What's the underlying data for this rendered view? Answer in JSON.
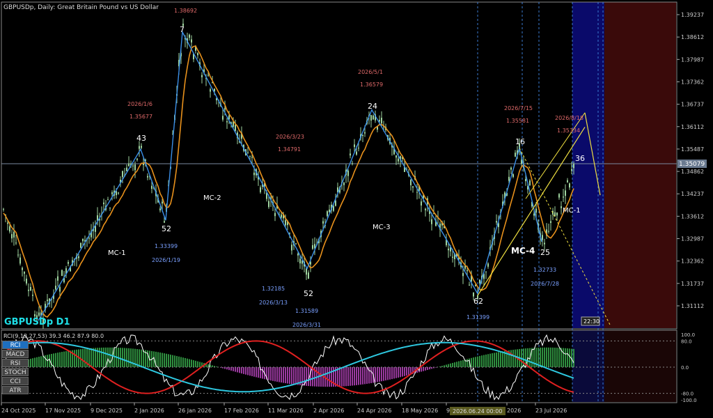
{
  "header": {
    "title": "GBPUSDp, Daily:  Great Britain Pound vs US Dollar"
  },
  "symbol_label": "GBPUSDp D1",
  "indicator_header": "RCI(9,13,27,53) 39.3 46.2 87.9 80.0",
  "indicator_buttons": [
    "RCI",
    "MACD",
    "RSI",
    "STOCH",
    "CCI",
    "ATR"
  ],
  "active_button": "RCI",
  "time_box": "22:30",
  "crosshair_date": "2026.06.24 00:00",
  "colors": {
    "up": "#9fd49f",
    "line": "#e8911c",
    "zigzag": "#3a8ee6",
    "rci1": "#ffffff",
    "rci2": "#e02020",
    "rci3": "#2ec8e0",
    "hist_pos": "#2f8f3f",
    "hist_neg": "#9b3aa0",
    "proj": "#f0e040",
    "zone_blue": "#0a0a6a",
    "zone_red": "#3a0a0a"
  },
  "chart_data": {
    "type": "candlestick",
    "y_ticks": [
      "1.39237",
      "1.38612",
      "1.37987",
      "1.37362",
      "1.36737",
      "1.36112",
      "1.35487",
      "1.34862",
      "1.34237",
      "1.33612",
      "1.32987",
      "1.32362",
      "1.31737",
      "1.31112"
    ],
    "current_price": "1.35079",
    "x_ticks": [
      "24 Oct 2025",
      "17 Nov 2025",
      "9 Dec 2025",
      "2 Jan 2026",
      "26 Jan 2026",
      "17 Feb 2026",
      "11 Mar 2026",
      "2 Apr 2026",
      "24 Apr 2026",
      "18 May 2026",
      "9",
      "2026",
      "23 Jul 2026"
    ],
    "swing_counts": [
      {
        "label": "43"
      },
      {
        "label": "52"
      },
      {
        "label": "7"
      },
      {
        "label": "52"
      },
      {
        "label": "24"
      },
      {
        "label": "62"
      },
      {
        "label": "16"
      },
      {
        "label": "25"
      },
      {
        "label": "36"
      }
    ],
    "price_annotations": [
      {
        "date": "",
        "price": "1.38692"
      },
      {
        "date": "2026/1/6",
        "price": "1.35677"
      },
      {
        "date": "2026/3/23",
        "price": "1.34791"
      },
      {
        "date": "2026/5/1",
        "price": "1.36579"
      },
      {
        "date": "2026/7/15",
        "price": "1.35581"
      },
      {
        "date": "2026/8/18",
        "price": "1.35334"
      },
      {
        "date": "2026/1/19",
        "price": "1.33399"
      },
      {
        "date": "2026/3/13",
        "price": "1.32185"
      },
      {
        "date": "2026/3/31",
        "price": "1.31589"
      },
      {
        "date": "",
        "price": "1.31399"
      },
      {
        "date": "2026/7/28",
        "price": "1.32733"
      }
    ],
    "cycle_labels": [
      "MC-1",
      "MC-2",
      "MC-3",
      "MC-4",
      "MC-1"
    ],
    "zigzag": [
      1.307,
      1.3548,
      1.335,
      1.3875,
      1.3215,
      1.3658,
      1.3145,
      1.3552,
      1.329
    ],
    "indicator_levels": [
      "100.0",
      "80.0",
      "0.0",
      "-80.0",
      "-100.0"
    ]
  }
}
